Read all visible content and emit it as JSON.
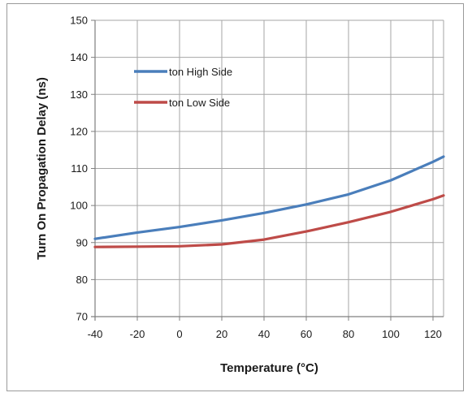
{
  "chart_data": {
    "type": "line",
    "title": "",
    "xlabel": "Temperature (°C)",
    "ylabel": "Turn On Propagation Delay (ns)",
    "xlim": [
      -40,
      125
    ],
    "ylim": [
      70,
      150
    ],
    "x_ticks": [
      -40,
      -20,
      0,
      20,
      40,
      60,
      80,
      100,
      120
    ],
    "y_ticks": [
      70,
      80,
      90,
      100,
      110,
      120,
      130,
      140,
      150
    ],
    "grid": true,
    "legend_position": "top-left",
    "series": [
      {
        "name": "ton High Side",
        "color": "#4a7ebb",
        "x": [
          -40,
          -20,
          0,
          20,
          40,
          60,
          80,
          100,
          120,
          125
        ],
        "y": [
          91.0,
          92.7,
          94.2,
          96.0,
          98.0,
          100.3,
          103.0,
          106.8,
          111.8,
          113.2
        ]
      },
      {
        "name": "ton Low Side",
        "color": "#be4b48",
        "x": [
          -40,
          -20,
          0,
          20,
          40,
          60,
          80,
          100,
          120,
          125
        ],
        "y": [
          88.8,
          88.9,
          89.0,
          89.5,
          90.8,
          93.0,
          95.5,
          98.3,
          101.7,
          102.7
        ]
      }
    ]
  }
}
